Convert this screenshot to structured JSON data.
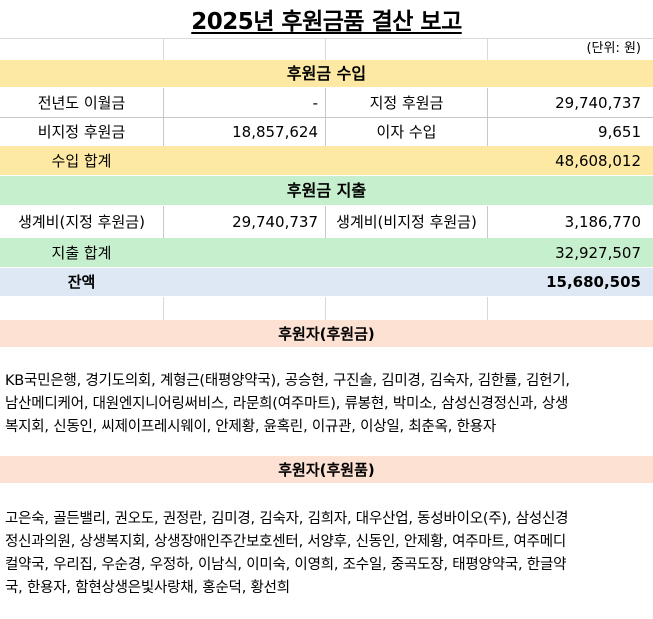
{
  "title": "2025년 후원금품 결산 보고",
  "unit": "(단위: 원)",
  "income": {
    "header": "후원금 수입",
    "rows": [
      {
        "label1": "전년도 이월금",
        "value1": "-",
        "label2": "지정 후원금",
        "value2": "29,740,737"
      },
      {
        "label1": "비지정 후원금",
        "value1": "18,857,624",
        "label2": "이자 수입",
        "value2": "9,651"
      }
    ],
    "total_label": "수입 합계",
    "total_value": "48,608,012"
  },
  "expense": {
    "header": "후원금 지출",
    "row": {
      "label1": "생계비(지정 후원금)",
      "value1": "29,740,737",
      "label2": "생계비(비지정 후원금)",
      "value2": "3,186,770"
    },
    "total_label": "지출 합계",
    "total_value": "32,927,507"
  },
  "balance": {
    "label": "잔액",
    "value": "15,680,505"
  },
  "donors_money": {
    "header": "후원자(후원금)",
    "lines": [
      "KB국민은행, 경기도의회, 계형근(태평양약국), 공승현, 구진솔, 김미경, 김숙자, 김한률, 김헌기,",
      "남산메디케어, 대원엔지니어링써비스, 라문희(여주마트), 류봉현, 박미소, 삼성신경정신과, 상생",
      "복지회, 신동인, 씨제이프레시웨이, 안제황, 윤혹린, 이규관, 이상일, 최춘옥, 한용자"
    ]
  },
  "donors_goods": {
    "header": "후원자(후원품)",
    "lines": [
      "고은숙, 골든밸리, 권오도, 권정란, 김미경, 김숙자, 김희자, 대우산업, 동성바이오(주), 삼성신경",
      "정신과의원, 상생복지회, 상생장애인주간보호센터, 서양후, 신동인, 안제황, 여주마트, 여주메디",
      "컬약국, 우리집, 우순경, 우정하, 이남식, 이미숙, 이영희, 조수일, 중곡도장, 태평양약국, 한글약",
      "국, 한용자, 함현상생은빛사랑채, 홍순덕, 황선희"
    ]
  },
  "colors": {
    "income_band": "#fde9a3",
    "expense_band": "#c6efce",
    "balance_band": "#dde8f4",
    "donor_band": "#fde1d3"
  }
}
